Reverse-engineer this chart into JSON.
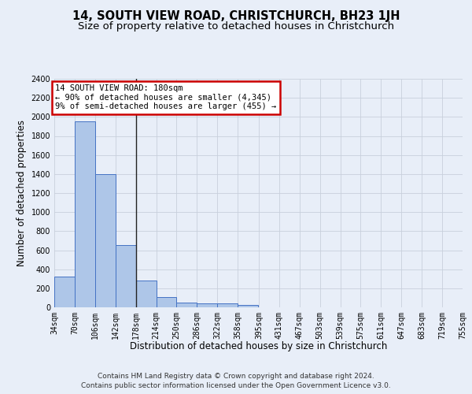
{
  "title": "14, SOUTH VIEW ROAD, CHRISTCHURCH, BH23 1JH",
  "subtitle": "Size of property relative to detached houses in Christchurch",
  "xlabel": "Distribution of detached houses by size in Christchurch",
  "ylabel": "Number of detached properties",
  "bin_edges": [
    34,
    70,
    106,
    142,
    178,
    214,
    250,
    286,
    322,
    358,
    395,
    431,
    467,
    503,
    539,
    575,
    611,
    647,
    683,
    719,
    755
  ],
  "bar_heights": [
    325,
    1950,
    1400,
    650,
    280,
    105,
    50,
    45,
    40,
    25,
    0,
    0,
    0,
    0,
    0,
    0,
    0,
    0,
    0,
    0
  ],
  "bar_color": "#aec6e8",
  "bar_edge_color": "#4472c4",
  "grid_color": "#c8d0dc",
  "background_color": "#e8eef8",
  "vline_x": 178,
  "vline_color": "#222222",
  "annotation_text": "14 SOUTH VIEW ROAD: 180sqm\n← 90% of detached houses are smaller (4,345)\n9% of semi-detached houses are larger (455) →",
  "annotation_box_color": "#cc0000",
  "annotation_bg": "#ffffff",
  "ylim": [
    0,
    2400
  ],
  "yticks": [
    0,
    200,
    400,
    600,
    800,
    1000,
    1200,
    1400,
    1600,
    1800,
    2000,
    2200,
    2400
  ],
  "xtick_labels": [
    "34sqm",
    "70sqm",
    "106sqm",
    "142sqm",
    "178sqm",
    "214sqm",
    "250sqm",
    "286sqm",
    "322sqm",
    "358sqm",
    "395sqm",
    "431sqm",
    "467sqm",
    "503sqm",
    "539sqm",
    "575sqm",
    "611sqm",
    "647sqm",
    "683sqm",
    "719sqm",
    "755sqm"
  ],
  "footnote_line1": "Contains HM Land Registry data © Crown copyright and database right 2024.",
  "footnote_line2": "Contains public sector information licensed under the Open Government Licence v3.0.",
  "title_fontsize": 10.5,
  "subtitle_fontsize": 9.5,
  "axis_label_fontsize": 8.5,
  "tick_fontsize": 7,
  "annotation_fontsize": 7.5,
  "footnote_fontsize": 6.5
}
